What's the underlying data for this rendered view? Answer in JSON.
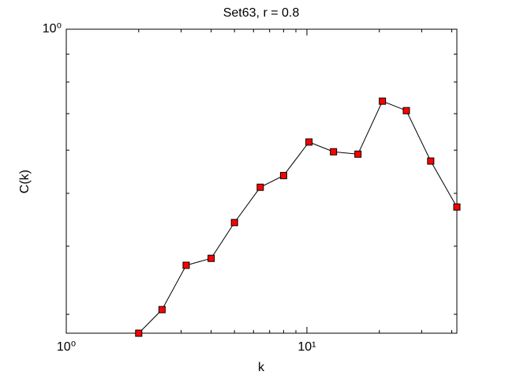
{
  "chart_data": {
    "type": "line",
    "title": "Set63, r = 0.8",
    "xlabel": "k",
    "ylabel": "C(k)",
    "x": [
      2,
      2.5,
      3.15,
      4,
      5,
      6.4,
      8,
      10.2,
      12.9,
      16.3,
      20.6,
      25.9,
      32.7,
      42
    ],
    "series": [
      {
        "color": "#ff0000",
        "values": [
          0.277,
          0.306,
          0.369,
          0.38,
          0.442,
          0.513,
          0.539,
          0.621,
          0.596,
          0.59,
          0.738,
          0.709,
          0.573,
          0.472
        ]
      }
    ],
    "xlim": [
      1,
      42
    ],
    "ylim": [
      0.277,
      1
    ],
    "xscale": "log",
    "yscale": "log",
    "xticks": [
      {
        "value": 1,
        "label": "10⁰"
      },
      {
        "value": 10,
        "label": "10¹"
      }
    ],
    "yticks": [
      {
        "value": 1,
        "label": "10⁰"
      }
    ],
    "xminorticks": [
      2,
      3,
      4,
      5,
      6,
      7,
      8,
      9,
      20,
      30,
      40
    ],
    "yminorticks": [
      0.3,
      0.4,
      0.5,
      0.6,
      0.7,
      0.8,
      0.9
    ]
  }
}
